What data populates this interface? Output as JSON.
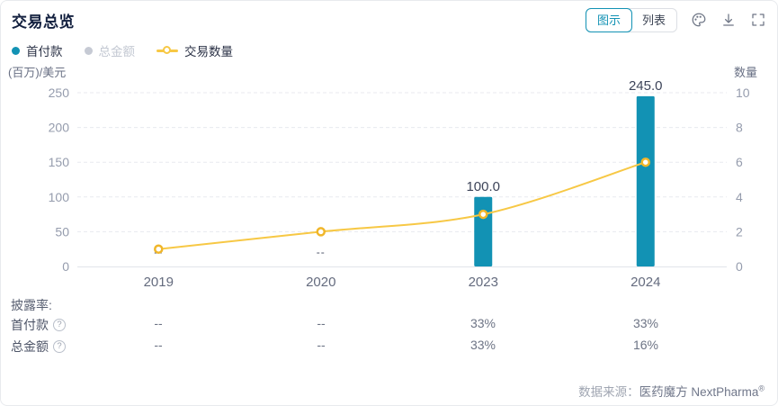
{
  "header": {
    "title": "交易总览",
    "view_options": [
      {
        "label": "图示",
        "selected": true
      },
      {
        "label": "列表",
        "selected": false
      }
    ]
  },
  "colors": {
    "accent_teal": "#1292b4",
    "bar_teal": "#1292b4",
    "line_yellow": "#f7c845",
    "marker_yellow": "#f0b62a",
    "disabled_gray": "#c6cad4"
  },
  "legend": {
    "items": [
      {
        "label": "首付款",
        "color": "#1292b4",
        "active": true,
        "marker": "dot"
      },
      {
        "label": "总金额",
        "color": "#c6cad4",
        "active": false,
        "marker": "dot"
      },
      {
        "label": "交易数量",
        "color": "#f7c845",
        "active": true,
        "marker": "line-circle"
      }
    ]
  },
  "chart_data": {
    "type": "combo",
    "categories": [
      "2019",
      "2020",
      "2023",
      "2024"
    ],
    "series": [
      {
        "name": "首付款",
        "type": "bar",
        "axis": "left",
        "color": "#1292b4",
        "values": [
          null,
          null,
          100.0,
          245.0
        ],
        "labels": [
          "--",
          "--",
          "100.0",
          "245.0"
        ]
      },
      {
        "name": "总金额",
        "type": "bar",
        "axis": "left",
        "color": "#c6cad4",
        "hidden": true,
        "values": []
      },
      {
        "name": "交易数量",
        "type": "line",
        "axis": "right",
        "color": "#f7c845",
        "marker_color": "#f0b62a",
        "values": [
          1,
          2,
          3,
          6
        ]
      }
    ],
    "left_axis": {
      "title": "(百万)/美元",
      "ticks": [
        0,
        50,
        100,
        150,
        200,
        250
      ],
      "max": 250
    },
    "right_axis": {
      "title": "数量",
      "ticks": [
        0,
        2,
        4,
        6,
        8,
        10
      ],
      "max": 10
    },
    "grid": "dashed horizontal"
  },
  "disclosure": {
    "title": "披露率:",
    "help_icon": "?",
    "rows": [
      {
        "label": "首付款",
        "values": [
          "--",
          "--",
          "33%",
          "33%"
        ]
      },
      {
        "label": "总金额",
        "values": [
          "--",
          "--",
          "33%",
          "16%"
        ]
      }
    ]
  },
  "footer": {
    "source_label": "数据来源：",
    "source_value": "医药魔方 NextPharma",
    "reg_mark": "®"
  }
}
